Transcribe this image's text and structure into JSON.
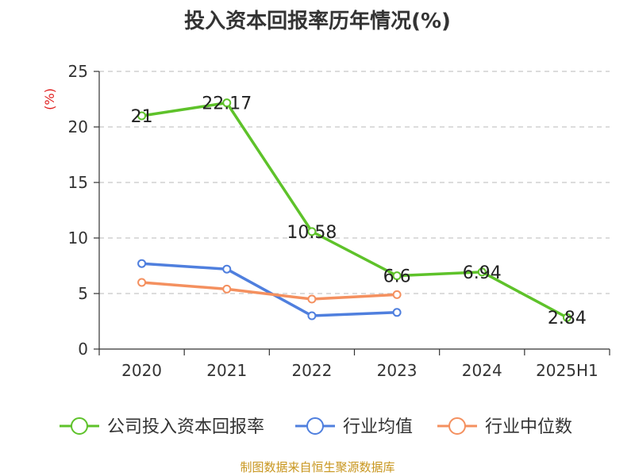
{
  "chart_data": {
    "type": "line",
    "title": "投入资本回报率历年情况(%)",
    "ylabel": "(%)",
    "xlabel": "",
    "categories": [
      "2020",
      "2021",
      "2022",
      "2023",
      "2024",
      "2025H1"
    ],
    "ylim": [
      0,
      25
    ],
    "yticks": [
      0,
      5,
      10,
      15,
      20,
      25
    ],
    "grid": "horizontal-dashed",
    "legend_position": "bottom",
    "series": [
      {
        "name": "公司投入资本回报率",
        "color": "#5ec22a",
        "values": [
          21,
          22.17,
          10.58,
          6.6,
          6.94,
          2.84
        ],
        "labels": [
          "21",
          "22.17",
          "10.58",
          "6.6",
          "6.94",
          "2.84"
        ]
      },
      {
        "name": "行业均值",
        "color": "#4f7fde",
        "values": [
          7.7,
          7.2,
          3.0,
          3.3,
          null,
          null
        ]
      },
      {
        "name": "行业中位数",
        "color": "#f4905f",
        "values": [
          6.0,
          5.4,
          4.5,
          4.9,
          null,
          null
        ]
      }
    ]
  },
  "source": "制图数据来自恒生聚源数据库"
}
